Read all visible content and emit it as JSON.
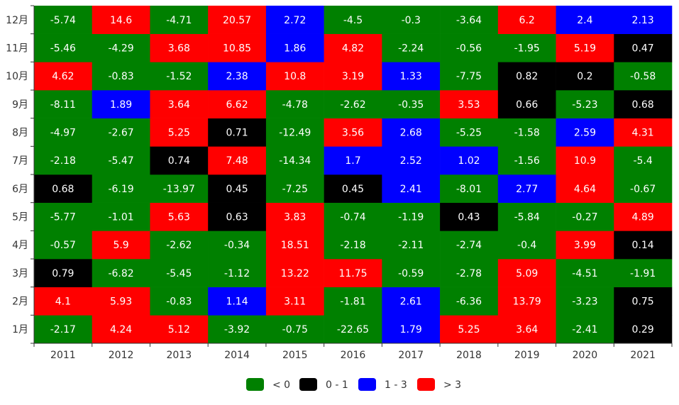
{
  "chart_data": {
    "type": "heatmap",
    "title": "",
    "xlabel": "",
    "ylabel": "",
    "x": [
      "2011",
      "2012",
      "2013",
      "2014",
      "2015",
      "2016",
      "2017",
      "2018",
      "2019",
      "2020",
      "2021"
    ],
    "y": [
      "1月",
      "2月",
      "3月",
      "4月",
      "5月",
      "6月",
      "7月",
      "8月",
      "9月",
      "10月",
      "11月",
      "12月"
    ],
    "values": [
      [
        -2.17,
        4.1,
        0.79,
        -0.57,
        -5.77,
        0.68,
        -2.18,
        -4.97,
        -8.11,
        4.62,
        -5.46,
        -5.74
      ],
      [
        4.24,
        5.93,
        -6.82,
        5.9,
        -1.01,
        -6.19,
        -5.47,
        -2.67,
        1.89,
        -0.83,
        -4.29,
        14.6
      ],
      [
        5.12,
        -0.83,
        -5.45,
        -2.62,
        5.63,
        -13.97,
        0.74,
        5.25,
        3.64,
        -1.52,
        3.68,
        -4.71
      ],
      [
        -3.92,
        1.14,
        -1.12,
        -0.34,
        0.63,
        0.45,
        7.48,
        0.71,
        6.62,
        2.38,
        10.85,
        20.57
      ],
      [
        -0.75,
        3.11,
        13.22,
        18.51,
        3.83,
        -7.25,
        -14.34,
        -12.49,
        -4.78,
        10.8,
        1.86,
        2.72
      ],
      [
        -22.65,
        -1.81,
        11.75,
        -2.18,
        -0.74,
        0.45,
        1.7,
        3.56,
        -2.62,
        3.19,
        4.82,
        -4.5
      ],
      [
        1.79,
        2.61,
        -0.59,
        -2.11,
        -1.19,
        2.41,
        2.52,
        2.68,
        -0.35,
        1.33,
        -2.24,
        -0.3
      ],
      [
        5.25,
        -6.36,
        -2.78,
        -2.74,
        0.43,
        -8.01,
        1.02,
        -5.25,
        3.53,
        -7.75,
        -0.56,
        -3.64
      ],
      [
        3.64,
        13.79,
        5.09,
        -0.4,
        -5.84,
        2.77,
        -1.56,
        -1.58,
        0.66,
        0.82,
        -1.95,
        6.2
      ],
      [
        -2.41,
        -3.23,
        -4.51,
        3.99,
        -0.27,
        4.64,
        10.9,
        2.59,
        -5.23,
        0.2,
        5.19,
        2.4
      ],
      [
        0.29,
        0.75,
        -1.91,
        0.14,
        4.89,
        -0.67,
        -5.4,
        4.31,
        0.68,
        -0.58,
        0.47,
        2.13
      ]
    ],
    "legend": {
      "position": "bottom",
      "items": [
        {
          "label": "< 0",
          "color": "#008000",
          "min": null,
          "max": 0
        },
        {
          "label": "0 - 1",
          "color": "#000000",
          "min": 0,
          "max": 1
        },
        {
          "label": "1 - 3",
          "color": "#0000ff",
          "min": 1,
          "max": 3
        },
        {
          "label": "> 3",
          "color": "#ff0000",
          "min": 3,
          "max": null
        }
      ]
    },
    "grid": false
  }
}
